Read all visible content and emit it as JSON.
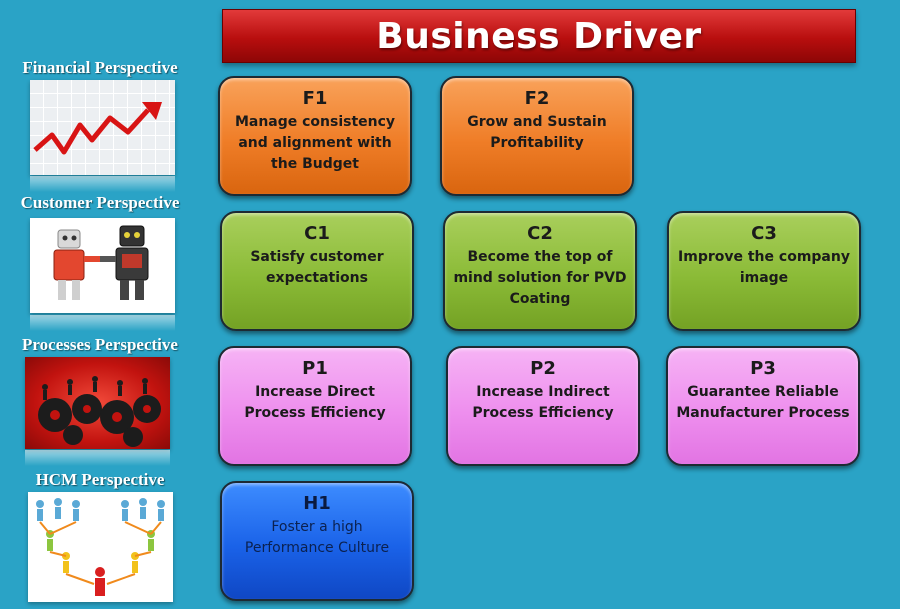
{
  "title": "Business Driver",
  "perspectives": [
    {
      "label": "Financial Perspective"
    },
    {
      "label": "Customer Perspective"
    },
    {
      "label": "Processes Perspective"
    },
    {
      "label": "HCM Perspective"
    }
  ],
  "drivers": {
    "f1": {
      "code": "F1",
      "text": "Manage consistency and alignment with the Budget"
    },
    "f2": {
      "code": "F2",
      "text": "Grow and Sustain Profitability"
    },
    "c1": {
      "code": "C1",
      "text": "Satisfy customer expectations"
    },
    "c2": {
      "code": "C2",
      "text": "Become the top of mind solution for PVD Coating"
    },
    "c3": {
      "code": "C3",
      "text": "Improve the company image"
    },
    "p1": {
      "code": "P1",
      "text": "Increase Direct Process Efficiency"
    },
    "p2": {
      "code": "P2",
      "text": "Increase Indirect Process Efficiency"
    },
    "p3": {
      "code": "P3",
      "text": "Guarantee Reliable Manufacturer Process"
    },
    "h1": {
      "code": "H1",
      "text": "Foster a high Performance Culture"
    }
  },
  "colors": {
    "background": "#2aa3c6",
    "title_bar": "#b80e0e",
    "financial": "#ef7d27",
    "customer": "#8bbb37",
    "processes": "#ee8fee",
    "hcm": "#1a62e8"
  }
}
